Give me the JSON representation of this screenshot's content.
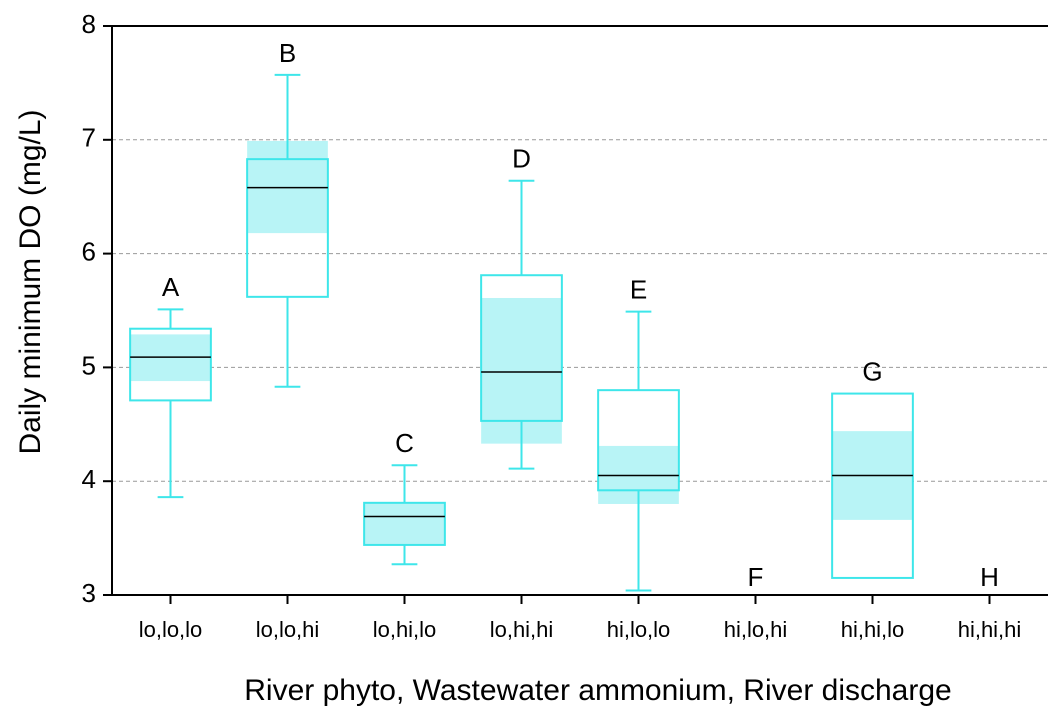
{
  "chart_data": {
    "type": "box",
    "x_label": "River phyto, Wastewater ammonium, River discharge",
    "y_label": "Daily minimum DO (mg/L)",
    "categories": [
      "lo,lo,lo",
      "lo,lo,hi",
      "lo,hi,lo",
      "lo,hi,hi",
      "hi,lo,lo",
      "hi,lo,hi",
      "hi,hi,lo",
      "hi,hi,hi"
    ],
    "letters": [
      "A",
      "B",
      "C",
      "D",
      "E",
      "F",
      "G",
      "H"
    ],
    "whisker_high": [
      5.51,
      7.57,
      4.14,
      6.64,
      5.49,
      null,
      null,
      null
    ],
    "q3": [
      5.34,
      6.83,
      3.81,
      5.81,
      4.8,
      null,
      4.77,
      null
    ],
    "median": [
      5.09,
      6.58,
      3.69,
      4.96,
      4.05,
      null,
      4.05,
      null
    ],
    "q1": [
      4.71,
      5.62,
      3.44,
      4.53,
      3.92,
      null,
      3.15,
      null
    ],
    "whisker_low": [
      3.86,
      4.83,
      3.27,
      4.11,
      3.04,
      null,
      null,
      null
    ],
    "notch_high": [
      5.29,
      6.99,
      3.81,
      5.61,
      4.31,
      null,
      4.44,
      null
    ],
    "notch_low": [
      4.88,
      6.18,
      3.44,
      4.33,
      3.8,
      null,
      3.66,
      null
    ],
    "color": "#3ee6ea",
    "fill_color": "#b8f4f6",
    "median_color": "#000000",
    "ylim": [
      3,
      8
    ],
    "yticks": [
      3,
      4,
      5,
      6,
      7,
      8
    ],
    "grid": true
  }
}
